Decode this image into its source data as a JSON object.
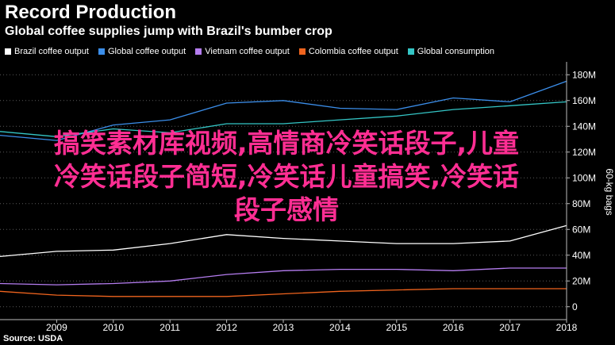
{
  "header": {
    "title": "Record Production",
    "subtitle": "Global coffee supplies jump with Brazil's bumber crop"
  },
  "source": "Source: USDA",
  "overlay": {
    "line1": "搞笑素材库视频,高情商冷笑话段子,儿童",
    "line2": "冷笑话段子简短,冷笑话儿童搞笑,冷笑话",
    "line3": "段子感情"
  },
  "colors": {
    "background": "#000000",
    "brazil": "#ffffff",
    "global_output": "#3b8eea",
    "vietnam": "#b57df0",
    "colombia": "#f0641e",
    "consumption": "#34c6c6",
    "overlay_text": "#ff2e93"
  },
  "chart_data": {
    "type": "line",
    "title": "Record Production",
    "subtitle": "Global coffee supplies jump with Brazil's bumber crop",
    "xlabel": "",
    "ylabel": "60-kg bags",
    "x": [
      2008,
      2009,
      2010,
      2011,
      2012,
      2013,
      2014,
      2015,
      2016,
      2017,
      2018
    ],
    "xlim": [
      2008,
      2018
    ],
    "x_ticks": [
      "2009",
      "2010",
      "2011",
      "2012",
      "2013",
      "2014",
      "2015",
      "2016",
      "2017",
      "2018"
    ],
    "ylim": [
      -10,
      190
    ],
    "y_ticks": [
      {
        "value": 0,
        "label": "0"
      },
      {
        "value": 20,
        "label": "20M"
      },
      {
        "value": 40,
        "label": "40M"
      },
      {
        "value": 60,
        "label": "60M"
      },
      {
        "value": 80,
        "label": "80M"
      },
      {
        "value": 100,
        "label": "100M"
      },
      {
        "value": 120,
        "label": "120M"
      },
      {
        "value": 140,
        "label": "140M"
      },
      {
        "value": 160,
        "label": "160M"
      },
      {
        "value": 180,
        "label": "180M"
      }
    ],
    "axis_side": "right",
    "grid": "horizontal dotted",
    "legend_position": "top-left",
    "series": [
      {
        "key": "brazil",
        "name": "Brazil coffee output",
        "values": [
          39,
          43,
          44,
          49,
          56,
          53,
          51,
          49,
          49,
          51,
          63
        ]
      },
      {
        "key": "global_output",
        "name": "Global coffee output",
        "values": [
          133,
          129,
          141,
          145,
          158,
          160,
          154,
          153,
          162,
          159,
          175
        ]
      },
      {
        "key": "vietnam",
        "name": "Vietnam coffee output",
        "values": [
          18,
          17,
          18,
          20,
          25,
          28,
          29,
          29,
          28,
          30,
          30
        ]
      },
      {
        "key": "colombia",
        "name": "Colombia coffee output",
        "values": [
          12,
          9,
          8,
          8,
          8,
          10,
          12,
          13,
          14,
          14,
          14
        ]
      },
      {
        "key": "consumption",
        "name": "Global consumption",
        "values": [
          136,
          132,
          138,
          135,
          142,
          142,
          145,
          148,
          153,
          156,
          159
        ]
      }
    ]
  }
}
